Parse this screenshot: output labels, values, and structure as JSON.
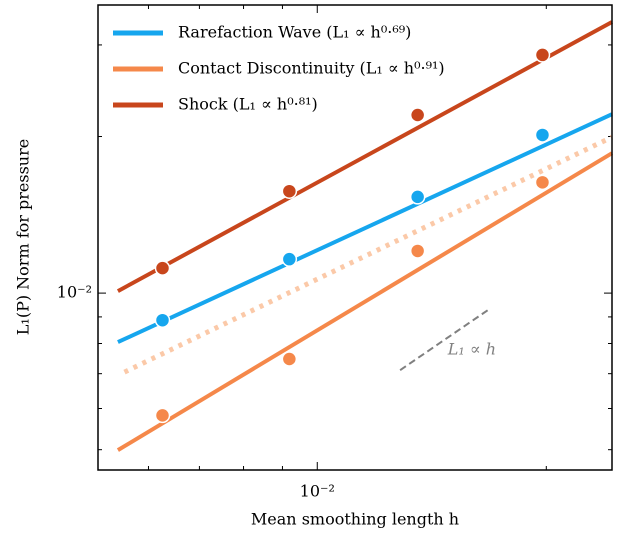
{
  "chart_data": {
    "type": "scatter",
    "xlabel": "Mean smoothing length h",
    "ylabel": "L₁(P) Norm for pressure",
    "xscale": "log",
    "yscale": "log",
    "xlim": [
      0.00515,
      0.0244
    ],
    "ylim": [
      0.00457,
      0.0358
    ],
    "xticks": [
      {
        "value": 0.01,
        "label": "10⁻²"
      }
    ],
    "yticks": [
      {
        "value": 0.01,
        "label": "10⁻²"
      }
    ],
    "xticks_minor": [
      0.006,
      0.007,
      0.008,
      0.009,
      0.02
    ],
    "yticks_minor": [
      0.005,
      0.006,
      0.007,
      0.008,
      0.009,
      0.02,
      0.03
    ],
    "legend": "upper left",
    "x": [
      0.00626,
      0.00919,
      0.01355,
      0.01977
    ],
    "series": [
      {
        "name": "Rarefaction Wave (L₁ ∝ h⁰·⁶⁹)",
        "color": "#16a6ee",
        "values": [
          0.00887,
          0.01162,
          0.01531,
          0.02014
        ]
      },
      {
        "name": "Contact Discontinuity (L₁ ∝ h⁰·⁹¹)",
        "color": "#f5884a",
        "values": [
          0.00582,
          0.00747,
          0.01205,
          0.01633
        ]
      },
      {
        "name": "Shock (L₁ ∝ h⁰·⁸¹)",
        "color": "#c8461c",
        "values": [
          0.01117,
          0.0157,
          0.022,
          0.0287
        ]
      }
    ],
    "fits": [
      {
        "color": "#16a6ee",
        "style": "solid",
        "x": [
          0.00547,
          0.0244
        ],
        "values": [
          0.00805,
          0.02208
        ]
      },
      {
        "color": "#f5884a",
        "style": "solid",
        "x": [
          0.00547,
          0.0244
        ],
        "values": [
          0.00499,
          0.01858
        ]
      },
      {
        "color": "#c8461c",
        "style": "solid",
        "x": [
          0.00547,
          0.0244
        ],
        "values": [
          0.01009,
          0.0332
        ]
      },
      {
        "color": "#fbc9a8",
        "style": "dotted",
        "x": [
          0.00558,
          0.0244
        ],
        "values": [
          0.00705,
          0.01995
        ]
      }
    ],
    "guide": {
      "label": "L₁ ∝ h",
      "color": "#808080",
      "x": [
        0.01285,
        0.01675
      ],
      "values": [
        0.00711,
        0.00927
      ]
    }
  }
}
